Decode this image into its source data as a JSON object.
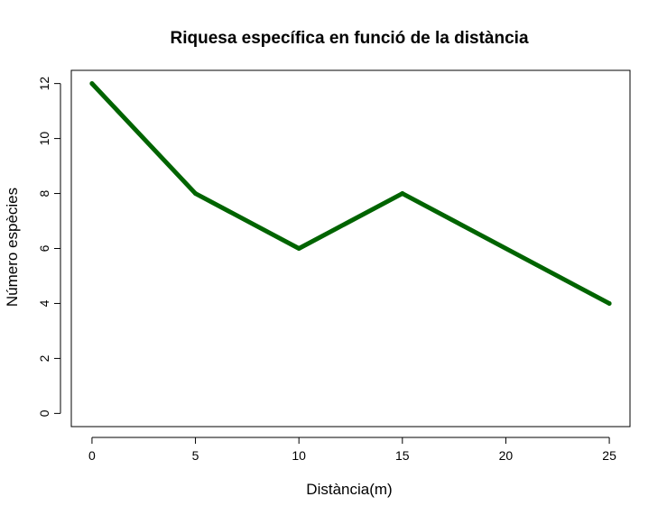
{
  "chart_data": {
    "type": "line",
    "title": "Riquesa específica en funció de la distància",
    "xlabel": "Distància(m)",
    "ylabel": "Número espècies",
    "x": [
      0,
      5,
      10,
      15,
      25
    ],
    "series": [
      {
        "values": [
          12,
          8,
          6,
          8,
          4
        ],
        "color": "#006400"
      }
    ],
    "xticks": [
      0,
      5,
      10,
      15,
      20,
      25
    ],
    "yticks": [
      0,
      2,
      4,
      6,
      8,
      10,
      12
    ],
    "xlim": [
      -1,
      26
    ],
    "ylim": [
      -0.48,
      12.48
    ],
    "grid": false,
    "legend": "none"
  }
}
